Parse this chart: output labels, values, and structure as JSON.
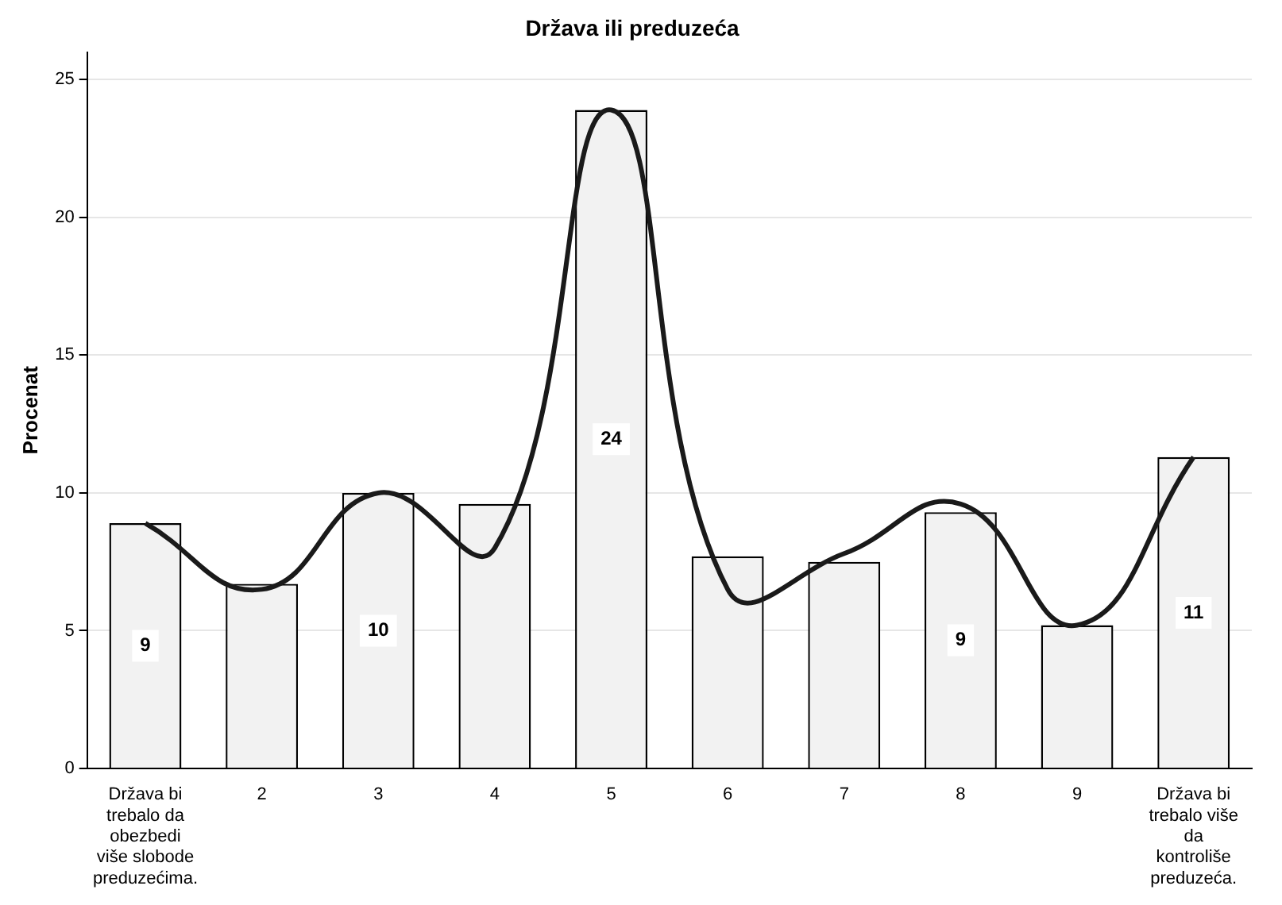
{
  "chart_data": {
    "type": "bar",
    "title": "Država ili preduzeća",
    "ylabel": "Procenat",
    "categories": [
      "Država bi trebalo da obezbedi više slobode preduzećima.",
      "2",
      "3",
      "4",
      "5",
      "6",
      "7",
      "8",
      "9",
      "Država bi trebalo više da kontroliše preduzeća."
    ],
    "series": [
      {
        "color": "#f2f2f2",
        "values": [
          8.9,
          6.7,
          10.0,
          9.6,
          23.9,
          7.7,
          7.5,
          9.3,
          5.2,
          11.3
        ],
        "value_labels": [
          "9",
          null,
          "10",
          null,
          "24",
          null,
          null,
          "9",
          null,
          "11"
        ]
      },
      {
        "type": "line",
        "color": "#1a1a1a",
        "values": [
          8.9,
          6.5,
          10.0,
          8.0,
          23.9,
          6.5,
          7.8,
          9.6,
          5.2,
          11.3
        ]
      }
    ],
    "ylim": [
      0,
      26
    ],
    "yticks": [
      0,
      5,
      10,
      15,
      20,
      25
    ],
    "grid": "y",
    "legend": false,
    "marker": "none",
    "line_style": "solid"
  }
}
